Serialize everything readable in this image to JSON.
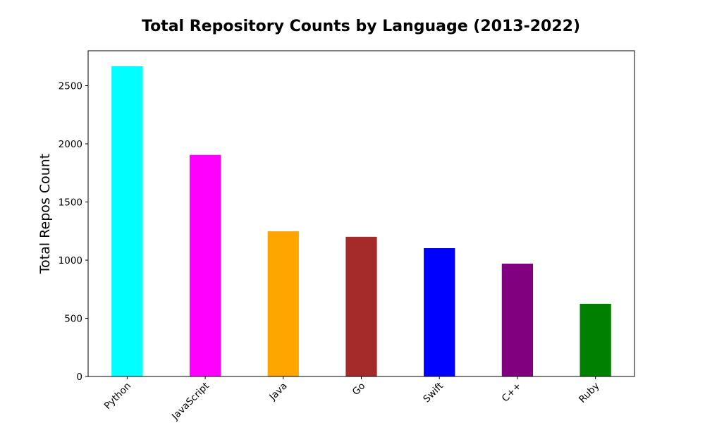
{
  "chart_data": {
    "type": "bar",
    "title": "Total Repository Counts by Language (2013-2022)",
    "xlabel": "",
    "ylabel": "Total Repos Count",
    "categories": [
      "Python",
      "JavaScript",
      "Java",
      "Go",
      "Swift",
      "C++",
      "Ruby"
    ],
    "values": [
      2667,
      1905,
      1248,
      1201,
      1103,
      970,
      625
    ],
    "colors": [
      "#00ffff",
      "#ff00ff",
      "#ffa500",
      "#a52a2a",
      "#0000ff",
      "#800080",
      "#008000"
    ],
    "ylim": [
      0,
      2800
    ],
    "yticks": [
      0,
      500,
      1000,
      1500,
      2000,
      2500
    ],
    "grid": false,
    "legend": "none"
  }
}
